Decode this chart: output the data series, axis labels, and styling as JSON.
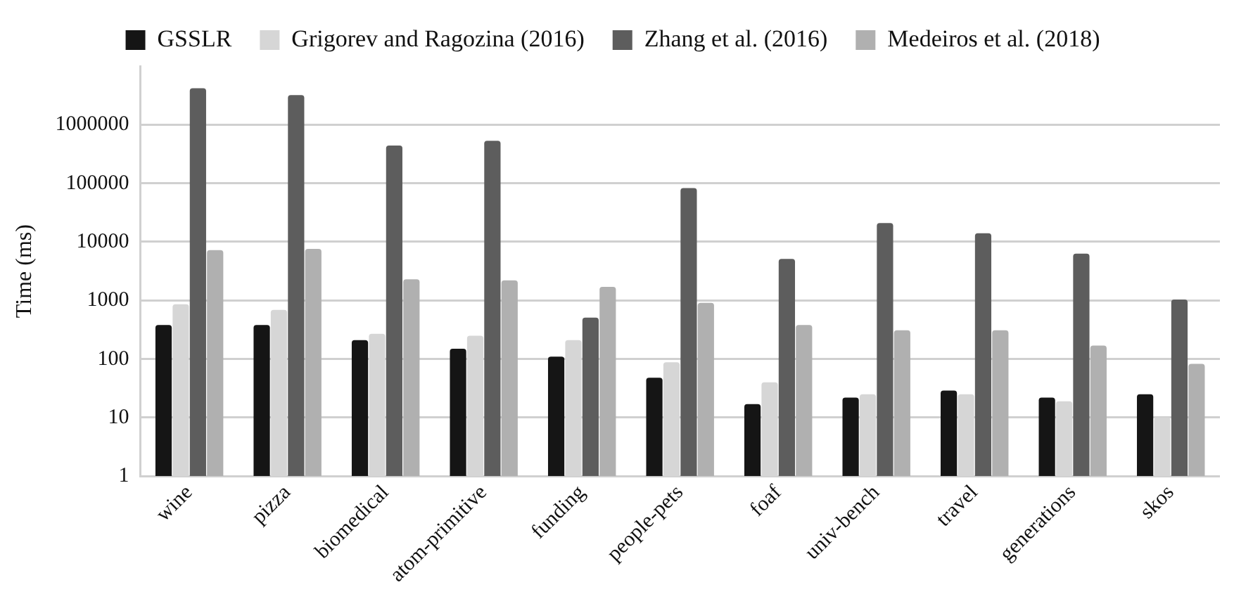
{
  "chart_data": {
    "type": "bar",
    "ylabel": "Time (ms)",
    "log": "y",
    "grid": "y",
    "legend": "top",
    "categories": [
      "wine",
      "pizza",
      "biomedical",
      "atom-primitive",
      "funding",
      "people-pets",
      "foaf",
      "univ-bench",
      "travel",
      "generations",
      "skos"
    ],
    "ylim": [
      1,
      10000000
    ],
    "yticks": [
      1,
      10,
      100,
      1000,
      10000,
      100000,
      1000000
    ],
    "series": [
      {
        "name": "GSSLR",
        "color": "#151515",
        "values": [
          380,
          380,
          210,
          150,
          110,
          48,
          17,
          22,
          29,
          22,
          25
        ]
      },
      {
        "name": "Grigorev and Ragozina (2016)",
        "color": "#d6d6d6",
        "values": [
          860,
          690,
          270,
          250,
          210,
          88,
          40,
          25,
          25,
          19,
          10
        ]
      },
      {
        "name": "Zhang et al. (2016)",
        "color": "#5d5d5d",
        "values": [
          4200000,
          3200000,
          440000,
          530000,
          510,
          83000,
          5100,
          21000,
          14000,
          6300,
          1040
        ]
      },
      {
        "name": "Medeiros et al. (2018)",
        "color": "#b0b0b0",
        "values": [
          7200,
          7600,
          2300,
          2200,
          1700,
          910,
          380,
          310,
          310,
          170,
          83
        ]
      }
    ]
  }
}
